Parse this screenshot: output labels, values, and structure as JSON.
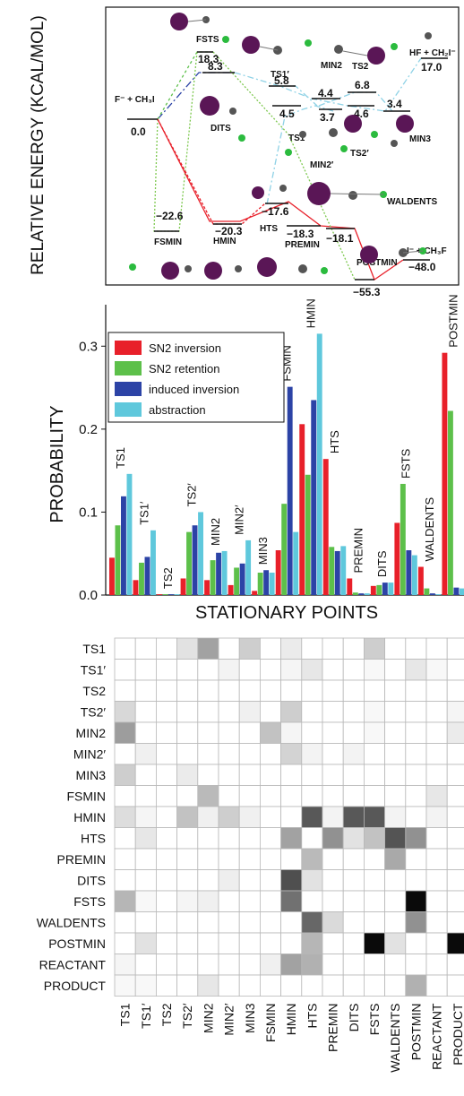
{
  "panel_a": {
    "ylabel": "RELATIVE ENERGY (KCAL/MOL)",
    "levels": [
      {
        "name": "F⁻ + CH₃I",
        "value": "0.0"
      },
      {
        "name": "FSMIN",
        "value": "−22.6"
      },
      {
        "name": "FSTS",
        "value": "18.3"
      },
      {
        "name": "",
        "value": "8.3"
      },
      {
        "name": "DITS",
        "value": ""
      },
      {
        "name": "HMIN",
        "value": "−20.3"
      },
      {
        "name": "TS1′",
        "value": "5.8"
      },
      {
        "name": "",
        "value": "4.5"
      },
      {
        "name": "TS1",
        "value": "3.7"
      },
      {
        "name": "",
        "value": "4.4"
      },
      {
        "name": "MIN2",
        "value": ""
      },
      {
        "name": "TS2",
        "value": "6.8"
      },
      {
        "name": "",
        "value": "4.6"
      },
      {
        "name": "TS2′",
        "value": ""
      },
      {
        "name": "MIN2′",
        "value": ""
      },
      {
        "name": "",
        "value": "3.4"
      },
      {
        "name": "MIN3",
        "value": ""
      },
      {
        "name": "HF + CH₂I⁻",
        "value": "17.0"
      },
      {
        "name": "HTS",
        "value": "−17.6"
      },
      {
        "name": "PREMIN",
        "value": "−18.3"
      },
      {
        "name": "WALDENTS",
        "value": "−18.1"
      },
      {
        "name": "POSTMIN",
        "value": "−55.3"
      },
      {
        "name": "I⁻ + CH₃F",
        "value": "−48.0"
      }
    ]
  },
  "chart_data": [
    {
      "type": "bar",
      "title": "",
      "xlabel": "STATIONARY POINTS",
      "ylabel": "PROBABILITY",
      "ylim": [
        0,
        0.35
      ],
      "yticks": [
        "0.0",
        "0.1",
        "0.2",
        "0.3"
      ],
      "legend_position": "top-left",
      "categories": [
        "TS1",
        "TS1′",
        "TS2",
        "TS2′",
        "MIN2",
        "MIN2′",
        "MIN3",
        "FSMIN",
        "HMIN",
        "HTS",
        "PREMIN",
        "DITS",
        "FSTS",
        "WALDENTS",
        "POSTMIN"
      ],
      "series": [
        {
          "name": "SN2 inversion",
          "color": "#e8202a",
          "values": [
            0.045,
            0.018,
            0.001,
            0.02,
            0.018,
            0.012,
            0.005,
            0.054,
            0.206,
            0.164,
            0.02,
            0.011,
            0.087,
            0.034,
            0.292
          ]
        },
        {
          "name": "SN2 retention",
          "color": "#5dc04a",
          "values": [
            0.084,
            0.039,
            0.001,
            0.076,
            0.042,
            0.033,
            0.027,
            0.11,
            0.145,
            0.058,
            0.003,
            0.012,
            0.134,
            0.008,
            0.222
          ]
        },
        {
          "name": "induced inversion",
          "color": "#2c43a6",
          "values": [
            0.119,
            0.046,
            0.001,
            0.084,
            0.051,
            0.038,
            0.03,
            0.251,
            0.235,
            0.053,
            0.002,
            0.015,
            0.054,
            0.002,
            0.009
          ]
        },
        {
          "name": "abstraction",
          "color": "#5fc8dc",
          "values": [
            0.146,
            0.078,
            0.001,
            0.1,
            0.053,
            0.066,
            0.027,
            0.076,
            0.315,
            0.059,
            0.002,
            0.015,
            0.048,
            0.001,
            0.008
          ]
        }
      ]
    },
    {
      "type": "heatmap",
      "rows": [
        "TS1",
        "TS1′",
        "TS2",
        "TS2′",
        "MIN2",
        "MIN2′",
        "MIN3",
        "FSMIN",
        "HMIN",
        "HTS",
        "PREMIN",
        "DITS",
        "FSTS",
        "WALDENTS",
        "POSTMIN",
        "REACTANT",
        "PRODUCT"
      ],
      "cols": [
        "TS1",
        "TS1′",
        "TS2",
        "TS2′",
        "MIN2",
        "MIN2′",
        "MIN3",
        "FSMIN",
        "HMIN",
        "HTS",
        "PREMIN",
        "DITS",
        "FSTS",
        "WALDENTS",
        "POSTMIN",
        "REACTANT",
        "PRODUCT"
      ],
      "values": [
        [
          0,
          0,
          0,
          0.12,
          0.38,
          0,
          0.2,
          0,
          0.08,
          0,
          0,
          0,
          0.2,
          0,
          0,
          0,
          0
        ],
        [
          0,
          0,
          0,
          0,
          0,
          0.05,
          0,
          0,
          0.04,
          0.1,
          0,
          0,
          0.03,
          0,
          0.1,
          0.03,
          0
        ],
        [
          0,
          0,
          0,
          0,
          0,
          0,
          0,
          0,
          0,
          0,
          0,
          0,
          0,
          0,
          0,
          0,
          0
        ],
        [
          0.16,
          0,
          0,
          0,
          0,
          0,
          0.06,
          0,
          0.2,
          0,
          0,
          0,
          0.03,
          0,
          0,
          0,
          0.04
        ],
        [
          0.4,
          0,
          0,
          0,
          0,
          0,
          0,
          0.25,
          0.04,
          0,
          0,
          0,
          0.03,
          0,
          0,
          0,
          0.08
        ],
        [
          0,
          0.06,
          0,
          0,
          0,
          0,
          0,
          0,
          0.18,
          0.05,
          0,
          0.05,
          0,
          0,
          0,
          0,
          0
        ],
        [
          0.2,
          0,
          0,
          0.08,
          0,
          0,
          0,
          0,
          0,
          0,
          0,
          0,
          0,
          0,
          0,
          0,
          0
        ],
        [
          0,
          0,
          0,
          0,
          0.28,
          0,
          0,
          0,
          0,
          0,
          0,
          0,
          0,
          0,
          0,
          0.1,
          0
        ],
        [
          0.14,
          0.04,
          0,
          0.25,
          0.06,
          0.2,
          0.06,
          0,
          0,
          0.68,
          0.05,
          0.68,
          0.68,
          0.05,
          0,
          0.05,
          0
        ],
        [
          0,
          0.1,
          0,
          0,
          0,
          0,
          0,
          0,
          0.38,
          0,
          0.45,
          0.12,
          0.25,
          0.7,
          0.45,
          0,
          0
        ],
        [
          0,
          0,
          0,
          0,
          0,
          0,
          0,
          0,
          0,
          0.28,
          0,
          0,
          0,
          0.35,
          0,
          0,
          0
        ],
        [
          0,
          0,
          0,
          0,
          0,
          0.07,
          0,
          0,
          0.72,
          0.12,
          0,
          0,
          0,
          0,
          0,
          0,
          0
        ],
        [
          0.3,
          0.03,
          0,
          0.04,
          0.06,
          0,
          0,
          0,
          0.58,
          0,
          0,
          0,
          0,
          0,
          1.0,
          0,
          0
        ],
        [
          0,
          0,
          0,
          0,
          0,
          0,
          0,
          0,
          0,
          0.62,
          0.15,
          0,
          0,
          0,
          0.45,
          0,
          0
        ],
        [
          0,
          0.12,
          0,
          0,
          0,
          0,
          0,
          0,
          0,
          0.3,
          0,
          0,
          1.0,
          0.12,
          0,
          0,
          1.0
        ],
        [
          0.04,
          0,
          0,
          0,
          0,
          0,
          0,
          0.06,
          0.38,
          0.32,
          0,
          0,
          0,
          0,
          0,
          0,
          0
        ],
        [
          0.03,
          0.03,
          0,
          0,
          0.1,
          0,
          0,
          0,
          0,
          0,
          0,
          0,
          0,
          0,
          0.32,
          0,
          0
        ]
      ]
    }
  ]
}
